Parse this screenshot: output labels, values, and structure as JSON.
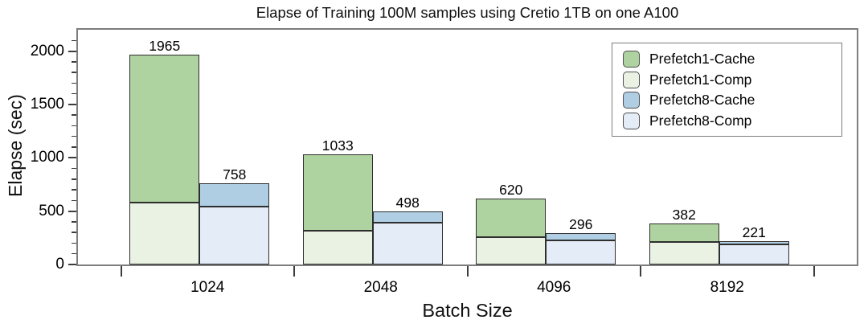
{
  "chart_data": {
    "type": "bar",
    "stacked": true,
    "title": "Elapse of Training 100M samples using Cretio 1TB on one A100",
    "xlabel": "Batch Size",
    "ylabel": "Elapse (sec)",
    "categories": [
      "1024",
      "2048",
      "4096",
      "8192"
    ],
    "ylim": [
      0,
      2200
    ],
    "yticks": [
      0,
      500,
      1000,
      1500,
      2000
    ],
    "minor_tick_step": 100,
    "grid": false,
    "series": [
      {
        "name": "Prefetch1-Comp",
        "stack": "prefetch1",
        "color": "#e9f2e3",
        "values": [
          580,
          320,
          255,
          210
        ]
      },
      {
        "name": "Prefetch1-Cache",
        "stack": "prefetch1",
        "color": "#aed2a0",
        "values": [
          1385,
          713,
          365,
          172
        ]
      },
      {
        "name": "Prefetch8-Comp",
        "stack": "prefetch8",
        "color": "#e4ecf7",
        "values": [
          545,
          390,
          225,
          190
        ]
      },
      {
        "name": "Prefetch8-Cache",
        "stack": "prefetch8",
        "color": "#b0cee3",
        "values": [
          213,
          108,
          71,
          31
        ]
      }
    ],
    "totals": {
      "prefetch1": [
        1965,
        1033,
        620,
        382
      ],
      "prefetch8": [
        758,
        498,
        296,
        221
      ]
    },
    "legend": {
      "position": "top-right",
      "entries": [
        {
          "label": "Prefetch1-Cache",
          "color": "#aed2a0"
        },
        {
          "label": "Prefetch1-Comp",
          "color": "#e9f2e3"
        },
        {
          "label": "Prefetch8-Cache",
          "color": "#b0cee3"
        },
        {
          "label": "Prefetch8-Comp",
          "color": "#e4ecf7"
        }
      ]
    }
  }
}
